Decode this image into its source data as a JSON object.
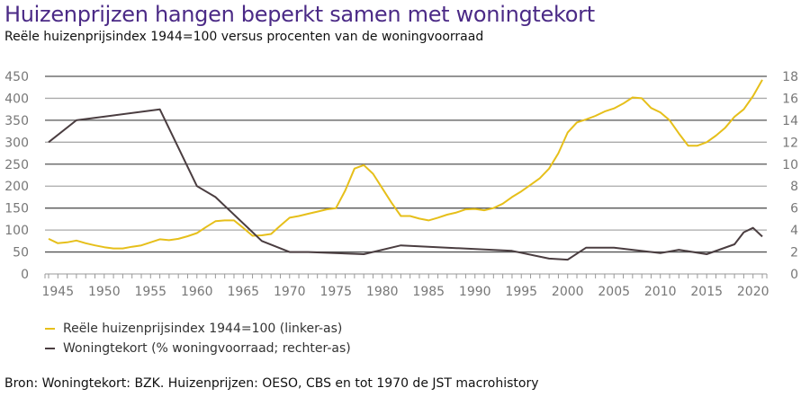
{
  "chart_data": {
    "type": "line",
    "title": "Huizenprijzen hangen beperkt samen met woningtekort",
    "subtitle": "Reële huizenprijsindex 1944=100 versus procenten van de woningvoorraad",
    "source": "Bron: Woningtekort: BZK. Huizenprijzen: OESO, CBS en tot 1970 de JST macrohistory",
    "xlim": [
      1944,
      2021
    ],
    "x_ticks": [
      1945,
      1950,
      1955,
      1960,
      1965,
      1970,
      1975,
      1980,
      1985,
      1990,
      1995,
      2000,
      2005,
      2010,
      2015,
      2020
    ],
    "y_left": {
      "ylim": [
        0,
        450
      ],
      "ticks": [
        0,
        50,
        100,
        150,
        200,
        250,
        300,
        350,
        400,
        450
      ]
    },
    "y_right": {
      "ylim": [
        0,
        18
      ],
      "ticks": [
        0,
        2,
        4,
        6,
        8,
        10,
        12,
        14,
        16,
        18
      ]
    },
    "grid": true,
    "legend_position": "bottom-left",
    "series": [
      {
        "name": "Reële huizenprijsindex 1944=100 (linker-as)",
        "axis": "left",
        "color": "#e6bf1a",
        "x": [
          1944,
          1945,
          1946,
          1947,
          1948,
          1949,
          1950,
          1951,
          1952,
          1953,
          1954,
          1955,
          1956,
          1957,
          1958,
          1959,
          1960,
          1961,
          1962,
          1963,
          1964,
          1965,
          1966,
          1967,
          1968,
          1969,
          1970,
          1971,
          1972,
          1973,
          1974,
          1975,
          1976,
          1977,
          1978,
          1979,
          1980,
          1981,
          1982,
          1983,
          1984,
          1985,
          1986,
          1987,
          1988,
          1989,
          1990,
          1991,
          1992,
          1993,
          1994,
          1995,
          1996,
          1997,
          1998,
          1999,
          2000,
          2001,
          2002,
          2003,
          2004,
          2005,
          2006,
          2007,
          2008,
          2009,
          2010,
          2011,
          2012,
          2013,
          2014,
          2015,
          2016,
          2017,
          2018,
          2019,
          2020,
          2021
        ],
        "values": [
          80,
          70,
          72,
          76,
          70,
          65,
          61,
          58,
          58,
          62,
          65,
          72,
          79,
          77,
          80,
          86,
          93,
          107,
          120,
          122,
          122,
          105,
          87,
          88,
          91,
          110,
          128,
          132,
          137,
          142,
          147,
          150,
          190,
          240,
          248,
          228,
          195,
          162,
          132,
          132,
          126,
          122,
          128,
          135,
          140,
          147,
          148,
          145,
          150,
          160,
          175,
          188,
          203,
          218,
          240,
          275,
          322,
          345,
          352,
          360,
          370,
          377,
          388,
          402,
          400,
          378,
          368,
          350,
          320,
          292,
          292,
          300,
          315,
          333,
          358,
          375,
          405,
          442
        ]
      },
      {
        "name": "Woningtekort (% woningvoorraad; rechter-as)",
        "axis": "right",
        "color": "#4a3d40",
        "x": [
          1944,
          1947,
          1956,
          1960,
          1962,
          1967,
          1970,
          1972,
          1978,
          1982,
          1994,
          1998,
          2000,
          2002,
          2005,
          2010,
          2012,
          2015,
          2018,
          2019,
          2020,
          2021
        ],
        "values": [
          12,
          14,
          15,
          8,
          7,
          3,
          2,
          2,
          1.8,
          2.6,
          2.1,
          1.4,
          1.3,
          2.4,
          2.4,
          1.9,
          2.2,
          1.8,
          2.7,
          3.8,
          4.2,
          3.4
        ]
      }
    ]
  }
}
